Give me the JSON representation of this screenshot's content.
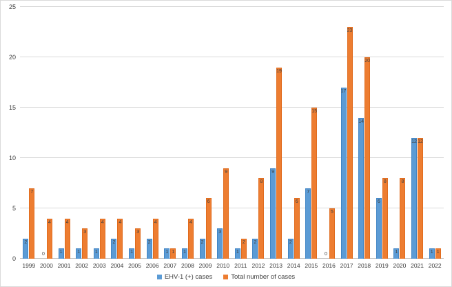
{
  "chart_data": {
    "type": "bar",
    "title": "",
    "categories": [
      "1999",
      "2000",
      "2001",
      "2002",
      "2003",
      "2004",
      "2005",
      "2006",
      "2007",
      "2008",
      "2009",
      "2010",
      "2011",
      "2012",
      "2013",
      "2014",
      "2015",
      "2016",
      "2017",
      "2018",
      "2019",
      "2020",
      "2021",
      "2022"
    ],
    "series": [
      {
        "name": "EHV-1 (+) cases",
        "color": "#5B9BD5",
        "border_color": "#4185C5",
        "values": [
          2,
          0,
          1,
          1,
          1,
          2,
          1,
          2,
          1,
          1,
          2,
          3,
          1,
          2,
          9,
          2,
          7,
          0,
          17,
          14,
          6,
          1,
          12,
          1
        ]
      },
      {
        "name": "Total number of cases",
        "color": "#ED7D31",
        "border_color": "#E06B1D",
        "values": [
          7,
          4,
          4,
          3,
          4,
          4,
          3,
          4,
          1,
          4,
          6,
          9,
          2,
          8,
          19,
          6,
          15,
          5,
          23,
          20,
          8,
          8,
          12,
          1
        ]
      }
    ],
    "ylim": [
      0,
      25
    ],
    "yticks": [
      0,
      5,
      10,
      15,
      20,
      25
    ],
    "grid": "horizontal",
    "gridline_color": "#d9d9d9",
    "axis_line_color": "#bfbfbf",
    "data_labels": "inside-end",
    "data_label_color": "#404040",
    "tick_label_color": "#404040",
    "legend_position": "bottom",
    "xlabel": "",
    "ylabel": ""
  }
}
